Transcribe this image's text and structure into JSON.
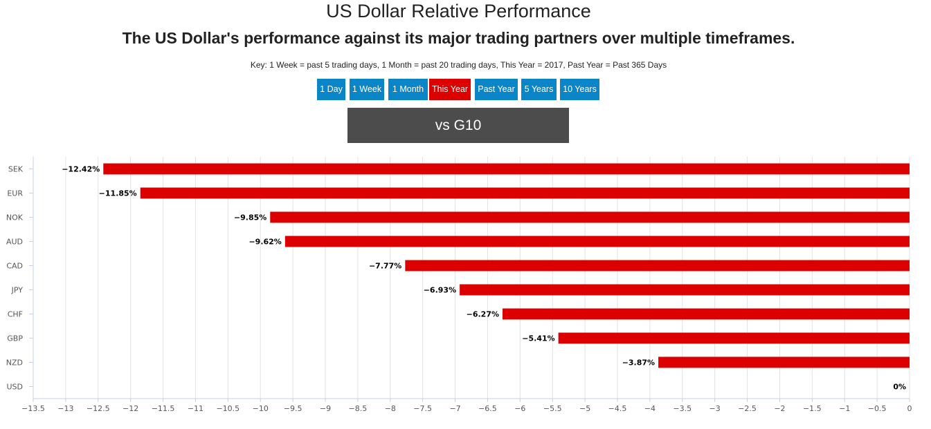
{
  "header": {
    "title": "US Dollar Relative Performance",
    "subtitle": "The US Dollar's performance against its major trading partners over multiple timeframes.",
    "key": "Key: 1 Week = past 5 trading days, 1 Month = past 20 trading days, This Year = 2017, Past Year = Past 365 Days"
  },
  "timeframes": {
    "items": [
      {
        "label": "1 Day",
        "active": false
      },
      {
        "label": "1 Week",
        "active": false
      },
      {
        "label": "1 Month",
        "active": false
      },
      {
        "label": "This Year",
        "active": true
      },
      {
        "label": "Past Year",
        "active": false
      },
      {
        "label": "5 Years",
        "active": false
      },
      {
        "label": "10 Years",
        "active": false
      }
    ]
  },
  "group_button": {
    "label": "vs G10"
  },
  "colors": {
    "bar": "#dd0000",
    "button": "#0a85c7",
    "button_active": "#dd0000",
    "group_button": "#4c4c4c"
  },
  "chart_data": {
    "type": "bar",
    "orientation": "horizontal",
    "categories": [
      "SEK",
      "EUR",
      "NOK",
      "AUD",
      "CAD",
      "JPY",
      "CHF",
      "GBP",
      "NZD",
      "USD"
    ],
    "values": [
      -12.42,
      -11.85,
      -9.85,
      -9.62,
      -7.77,
      -6.93,
      -6.27,
      -5.41,
      -3.87,
      0
    ],
    "data_labels": [
      "−12.42%",
      "−11.85%",
      "−9.85%",
      "−9.62%",
      "−7.77%",
      "−6.93%",
      "−6.27%",
      "−5.41%",
      "−3.87%",
      "0%"
    ],
    "xlim": [
      -13.5,
      0
    ],
    "xticks": [
      -13.5,
      -13,
      -12.5,
      -12,
      -11.5,
      -11,
      -10.5,
      -10,
      -9.5,
      -9,
      -8.5,
      -8,
      -7.5,
      -7,
      -6.5,
      -6,
      -5.5,
      -5,
      -4.5,
      -4,
      -3.5,
      -3,
      -2.5,
      -2,
      -1.5,
      -1,
      -0.5,
      0
    ],
    "xtick_labels": [
      "−13.5",
      "−13",
      "−12.5",
      "−12",
      "−11.5",
      "−11",
      "−10.5",
      "−10",
      "−9.5",
      "−9",
      "−8.5",
      "−8",
      "−7.5",
      "−7",
      "−6.5",
      "−6",
      "−5.5",
      "−5",
      "−4.5",
      "−4",
      "−3.5",
      "−3",
      "−2.5",
      "−2",
      "−1.5",
      "−1",
      "−0.5",
      "0"
    ],
    "grid": true,
    "title": "",
    "xlabel": "",
    "ylabel": ""
  }
}
